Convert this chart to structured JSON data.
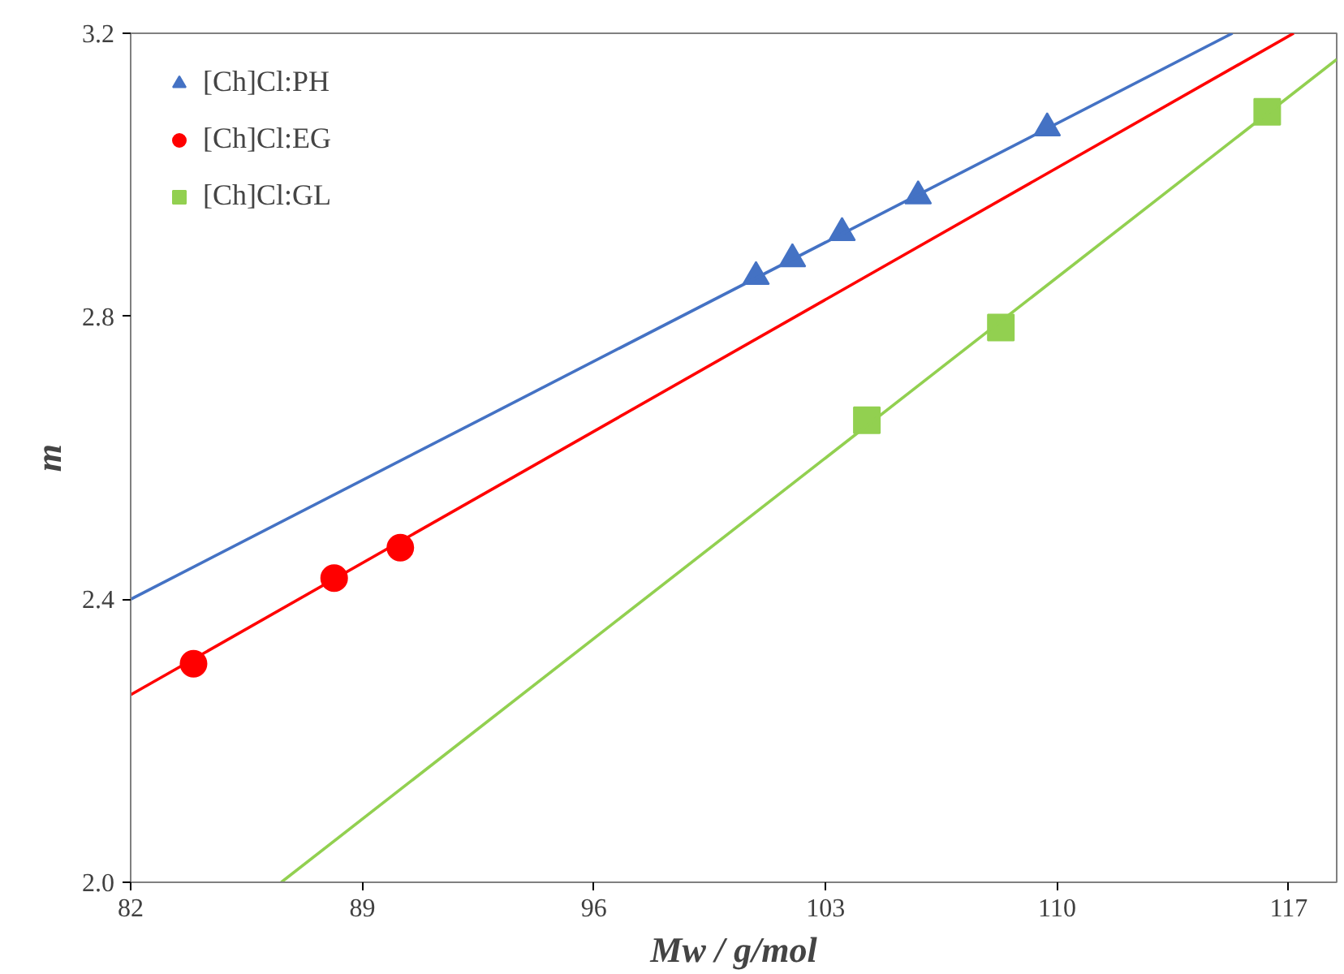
{
  "chart_data": {
    "type": "scatter",
    "xlabel": "Mw / g/mol",
    "ylabel": "m",
    "xlim": [
      82,
      118.45
    ],
    "ylim": [
      2.0,
      3.2
    ],
    "xticks": [
      82,
      89,
      96,
      103,
      110,
      117
    ],
    "yticks": [
      {
        "value": 2.0,
        "label": "2.0"
      },
      {
        "value": 2.4,
        "label": "2.4"
      },
      {
        "value": 2.8,
        "label": "2.8"
      },
      {
        "value": 3.2,
        "label": "3.2"
      }
    ],
    "grid": false,
    "legend": "top left",
    "series": [
      {
        "name": "[Ch]Cl:PH",
        "color": "#4472c4",
        "marker": "triangle",
        "x": [
          100.9,
          102.0,
          103.5,
          105.8,
          109.7
        ],
        "values": [
          2.856,
          2.881,
          2.918,
          2.97,
          3.066
        ]
      },
      {
        "name": "[Ch]Cl:EG",
        "color": "#ff0000",
        "marker": "circle",
        "x": [
          83.9,
          88.15,
          90.15
        ],
        "values": [
          2.309,
          2.43,
          2.473
        ]
      },
      {
        "name": "[Ch]Cl:GL",
        "color": "#92d050",
        "marker": "square",
        "x": [
          104.25,
          108.3,
          116.35
        ],
        "values": [
          2.653,
          2.784,
          3.089
        ]
      },
      {
        "type": "line",
        "color": "#4472c4",
        "x": [
          82,
          115.3
        ],
        "values": [
          2.4,
          3.2
        ]
      },
      {
        "type": "line",
        "color": "#ff0000",
        "x": [
          82,
          117.15
        ],
        "values": [
          2.265,
          3.2
        ]
      },
      {
        "type": "line",
        "color": "#92d050",
        "x": [
          86.55,
          118.45
        ],
        "values": [
          2.0,
          3.163
        ]
      }
    ]
  }
}
